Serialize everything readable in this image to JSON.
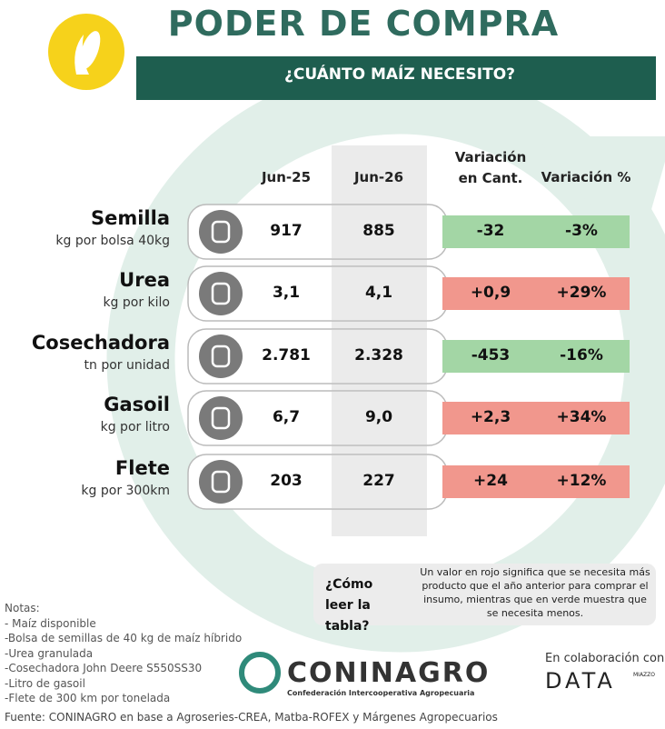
{
  "header": {
    "title": "PODER DE COMPRA",
    "subtitle": "¿CUÁNTO MAÍZ NECESITO?"
  },
  "table": {
    "columns": [
      "Jun-25",
      "Jun-26",
      "Variación en Cant.",
      "Variación %"
    ],
    "rows": [
      {
        "name": "Semilla",
        "unit": "kg por bolsa 40kg",
        "cells": [
          "917",
          "885",
          "-32",
          "-3%"
        ],
        "color": "#a3d6a5"
      },
      {
        "name": "Urea",
        "unit": "kg por kilo",
        "cells": [
          "3,1",
          "4,1",
          "+0,9",
          "+29%"
        ],
        "color": "#f1978d"
      },
      {
        "name": "Cosechadora",
        "unit": "tn por unidad",
        "cells": [
          "2.781",
          "2.328",
          "-453",
          "-16%"
        ],
        "color": "#a3d6a5"
      },
      {
        "name": "Gasoil",
        "unit": "kg por litro",
        "cells": [
          "6,7",
          "9,0",
          "+2,3",
          "+34%"
        ],
        "color": "#f1978d"
      },
      {
        "name": "Flete",
        "unit": "kg por 300km",
        "cells": [
          "203",
          "227",
          "+24",
          "+12%"
        ],
        "color": "#f1978d"
      }
    ]
  },
  "legend": {
    "question": "¿Cómo leer la tabla?",
    "answer": "Un valor en rojo significa que se necesita más producto que el año anterior para comprar el insumo, mientras que en verde muestra que se necesita menos."
  },
  "notes": [
    "Notas:",
    "- Maíz disponible",
    "-Bolsa de semillas de 40 kg de maíz híbrido",
    "-Urea granulada",
    "-Cosechadora John Deere S550SS30",
    "-Litro de gasoil",
    "-Flete de 300 km por tonelada"
  ],
  "source": "Fuente: CONINAGRO en base a Agroseries-CREA, Matba-ROFEX y Márgenes Agropecuarios",
  "logos": {
    "coninagro": "CONINAGRO",
    "coninagro_sub": "Confederación Intercooperativa Agropecuaria",
    "collab": "En colaboración con",
    "data": "DATA",
    "data_sub": "MIAZZO"
  }
}
